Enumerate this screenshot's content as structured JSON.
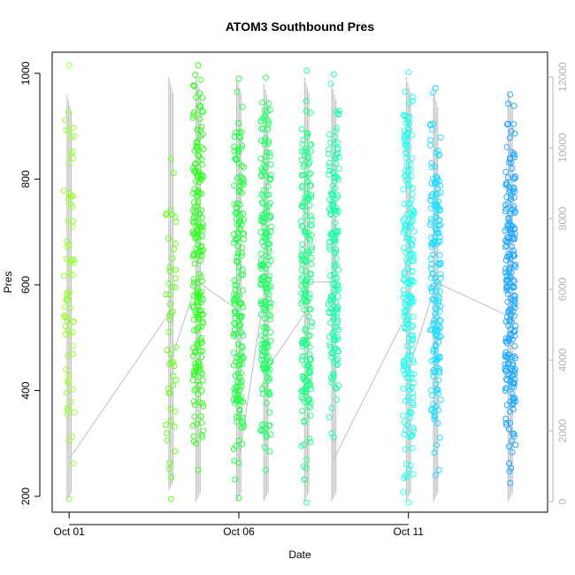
{
  "chart_data": {
    "type": "scatter",
    "title": "ATOM3 Southbound Pres",
    "xlabel": "Date",
    "ylabel": "Pres",
    "x_ticks": [
      {
        "label": "Oct 01",
        "day": 1.0
      },
      {
        "label": "Oct 06",
        "day": 6.0
      },
      {
        "label": "Oct 11",
        "day": 11.0
      }
    ],
    "xlim_days": [
      0.5,
      15.1
    ],
    "ylim": [
      170,
      1040
    ],
    "y_ticks": [
      200,
      400,
      600,
      800,
      1000
    ],
    "y_right_ticks": [
      0,
      2000,
      4000,
      6000,
      8000,
      10000,
      12000
    ],
    "y_right_lim": [
      -300,
      12700
    ],
    "grid": false,
    "point_style": "open circles, green-to-blue hue by time",
    "line_color": "#bebebe",
    "profiles": [
      {
        "day": 1.0,
        "p_min": 195,
        "p_max": 1015,
        "n": 70,
        "color": "#99ff33",
        "alt_min": 0,
        "alt_max": 11500
      },
      {
        "day": 4.0,
        "p_min": 195,
        "p_max": 838,
        "n": 50,
        "color": "#66ff22",
        "alt_min": 300,
        "alt_max": 12000
      },
      {
        "day": 4.8,
        "p_min": 250,
        "p_max": 1015,
        "n": 210,
        "color": "#33ff22",
        "alt_min": 0,
        "alt_max": 12000
      },
      {
        "day": 6.0,
        "p_min": 197,
        "p_max": 990,
        "n": 170,
        "color": "#22ff44",
        "alt_min": 0,
        "alt_max": 12000
      },
      {
        "day": 6.8,
        "p_min": 250,
        "p_max": 992,
        "n": 200,
        "color": "#22ff66",
        "alt_min": 0,
        "alt_max": 11800
      },
      {
        "day": 8.0,
        "p_min": 188,
        "p_max": 1005,
        "n": 190,
        "color": "#22ff88",
        "alt_min": 0,
        "alt_max": 12000
      },
      {
        "day": 8.8,
        "p_min": 312,
        "p_max": 998,
        "n": 170,
        "color": "#22ffaa",
        "alt_min": 0,
        "alt_max": 11800
      },
      {
        "day": 11.0,
        "p_min": 188,
        "p_max": 1002,
        "n": 200,
        "color": "#22ffee",
        "alt_min": 0,
        "alt_max": 12000
      },
      {
        "day": 11.8,
        "p_min": 240,
        "p_max": 972,
        "n": 180,
        "color": "#22ddff",
        "alt_min": 0,
        "alt_max": 11600
      },
      {
        "day": 14.0,
        "p_min": 225,
        "p_max": 960,
        "n": 230,
        "color": "#22aaff",
        "alt_min": 0,
        "alt_max": 11600
      }
    ]
  }
}
